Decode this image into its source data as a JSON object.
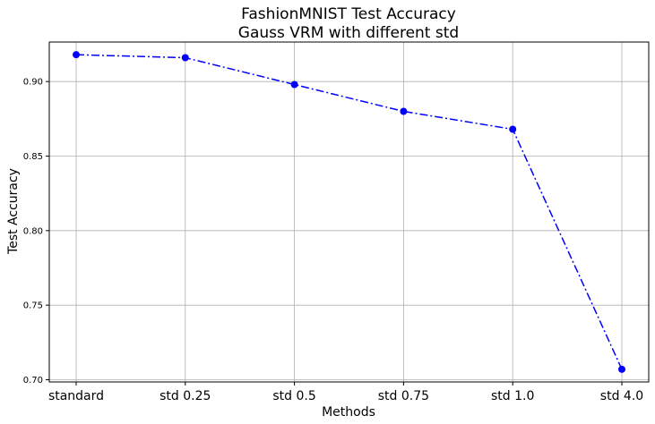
{
  "chart_data": {
    "type": "line",
    "title": "FashionMNIST Test Accuracy",
    "subtitle": "Gauss VRM with different std",
    "xlabel": "Methods",
    "ylabel": "Test Accuracy",
    "categories": [
      "standard",
      "std 0.25",
      "std 0.5",
      "std 0.75",
      "std 1.0",
      "std 4.0"
    ],
    "series": [
      {
        "values": [
          0.918,
          0.916,
          0.898,
          0.88,
          0.868,
          0.707
        ],
        "color": "#0000ff",
        "line_style": "dash-dot",
        "marker": "circle"
      }
    ],
    "yticks": [
      0.7,
      0.75,
      0.8,
      0.85,
      0.9
    ],
    "ytick_labels": [
      "0.70",
      "0.75",
      "0.80",
      "0.85",
      "0.90"
    ],
    "ylim": [
      0.6985,
      0.9265
    ],
    "grid": true
  }
}
